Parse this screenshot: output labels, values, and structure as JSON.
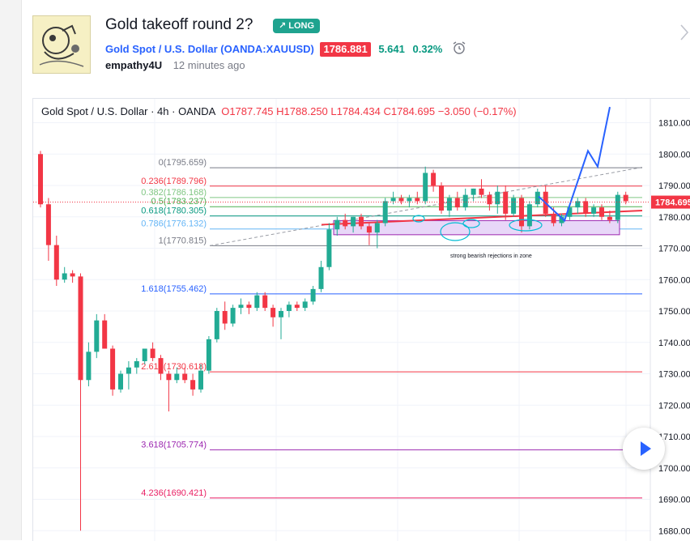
{
  "idea": {
    "title": "Gold takeoff round 2?",
    "badge": "LONG",
    "symbol_name": "Gold Spot / U.S. Dollar",
    "symbol_code": "(OANDA:XAUUSD)",
    "price": "1786.881",
    "change": "5.641",
    "change_pct": "0.32%",
    "author": "empathy4U",
    "time_ago": "12 minutes ago"
  },
  "chart": {
    "legend_title": "Gold Spot / U.S. Dollar · 4h · OANDA",
    "open": "O1787.745",
    "high": "H1788.250",
    "low": "L1784.434",
    "close": "C1784.695",
    "change": "−3.050 (−0.17%)",
    "last_price_label": "1784.695",
    "annotation": "strong bearish rejections in zone",
    "colors": {
      "up": "#22ab94",
      "down": "#f23645",
      "drawing": "#2962ff",
      "zone": "#e8d7f8"
    }
  },
  "chart_data": {
    "type": "candlestick",
    "ylim": [
      1678,
      1816
    ],
    "y_ticks": [
      "1680.000",
      "1690.000",
      "1700.000",
      "1710.000",
      "1720.000",
      "1730.000",
      "1740.000",
      "1750.000",
      "1760.000",
      "1770.000",
      "1780.000",
      "1790.000",
      "1800.000",
      "1810.000"
    ],
    "fib_levels": [
      {
        "label": "0(1795.659)",
        "value": 1795.659,
        "color": "#787b86"
      },
      {
        "label": "0.236(1789.796)",
        "value": 1789.796,
        "color": "#f23645"
      },
      {
        "label": "0.382(1786.168)",
        "value": 1786.168,
        "color": "#81c784"
      },
      {
        "label": "0.5(1783.237)",
        "value": 1783.237,
        "color": "#4caf50"
      },
      {
        "label": "0.618(1780.305)",
        "value": 1780.305,
        "color": "#089981"
      },
      {
        "label": "0.786(1776.132)",
        "value": 1776.132,
        "color": "#64b5f6"
      },
      {
        "label": "1(1770.815)",
        "value": 1770.815,
        "color": "#787b86"
      },
      {
        "label": "1.618(1755.462)",
        "value": 1755.462,
        "color": "#2962ff"
      },
      {
        "label": "2.618(1730.618)",
        "value": 1730.618,
        "color": "#f23645"
      },
      {
        "label": "3.618(1705.774)",
        "value": 1705.774,
        "color": "#9c27b0"
      },
      {
        "label": "4.236(1690.421)",
        "value": 1690.421,
        "color": "#e91e63"
      }
    ],
    "zone": {
      "top": 1778.8,
      "bottom": 1774.3
    },
    "candles": [
      [
        1800,
        1801,
        1783,
        1784
      ],
      [
        1784,
        1786,
        1766,
        1771
      ],
      [
        1771,
        1774,
        1758,
        1760
      ],
      [
        1760,
        1764,
        1759,
        1762
      ],
      [
        1762,
        1763,
        1759,
        1761
      ],
      [
        1761,
        1762,
        1680,
        1728
      ],
      [
        1728,
        1740,
        1726,
        1737
      ],
      [
        1737,
        1749,
        1735,
        1747
      ],
      [
        1747,
        1749,
        1738,
        1738
      ],
      [
        1738,
        1739,
        1723,
        1725
      ],
      [
        1725,
        1731,
        1724,
        1730
      ],
      [
        1730,
        1734,
        1725,
        1732
      ],
      [
        1732,
        1735,
        1730,
        1734
      ],
      [
        1734,
        1738,
        1733,
        1738
      ],
      [
        1738,
        1740,
        1734,
        1735
      ],
      [
        1735,
        1736,
        1728,
        1730
      ],
      [
        1730,
        1731,
        1718,
        1728
      ],
      [
        1728,
        1732,
        1727,
        1730
      ],
      [
        1730,
        1732,
        1727,
        1728
      ],
      [
        1728,
        1730,
        1723,
        1725
      ],
      [
        1725,
        1733,
        1724,
        1731
      ],
      [
        1731,
        1742,
        1730,
        1741
      ],
      [
        1741,
        1751,
        1740,
        1750
      ],
      [
        1750,
        1753,
        1744,
        1746
      ],
      [
        1746,
        1752,
        1745,
        1751
      ],
      [
        1751,
        1754,
        1749,
        1752
      ],
      [
        1752,
        1753,
        1749,
        1751
      ],
      [
        1751,
        1756,
        1750,
        1755
      ],
      [
        1755,
        1756,
        1750,
        1751
      ],
      [
        1751,
        1752,
        1745,
        1748
      ],
      [
        1748,
        1751,
        1741,
        1750
      ],
      [
        1750,
        1753,
        1748,
        1752
      ],
      [
        1752,
        1753,
        1750,
        1751
      ],
      [
        1751,
        1754,
        1750,
        1753
      ],
      [
        1753,
        1758,
        1752,
        1757
      ],
      [
        1757,
        1766,
        1756,
        1764
      ],
      [
        1764,
        1778,
        1763,
        1776
      ],
      [
        1776,
        1780,
        1774,
        1779
      ],
      [
        1779,
        1781,
        1776,
        1777
      ],
      [
        1777,
        1780,
        1775,
        1780
      ],
      [
        1780,
        1781,
        1776,
        1777
      ],
      [
        1777,
        1778,
        1771,
        1775
      ],
      [
        1775,
        1779,
        1770,
        1778
      ],
      [
        1778,
        1786,
        1777,
        1785
      ],
      [
        1785,
        1788,
        1784,
        1786
      ],
      [
        1786,
        1787,
        1784,
        1785
      ],
      [
        1785,
        1787,
        1783,
        1786
      ],
      [
        1786,
        1788,
        1784,
        1785
      ],
      [
        1785,
        1796,
        1784,
        1794
      ],
      [
        1794,
        1795,
        1788,
        1790
      ],
      [
        1790,
        1791,
        1781,
        1782
      ],
      [
        1782,
        1787,
        1780,
        1786
      ],
      [
        1786,
        1788,
        1782,
        1783
      ],
      [
        1783,
        1789,
        1782,
        1787
      ],
      [
        1787,
        1789,
        1785,
        1789
      ],
      [
        1789,
        1792,
        1786,
        1787
      ],
      [
        1787,
        1788,
        1782,
        1784
      ],
      [
        1784,
        1790,
        1781,
        1788
      ],
      [
        1788,
        1790,
        1779,
        1781
      ],
      [
        1781,
        1787,
        1780,
        1786
      ],
      [
        1786,
        1787,
        1775,
        1777
      ],
      [
        1777,
        1785,
        1776,
        1784
      ],
      [
        1784,
        1789,
        1783,
        1788
      ],
      [
        1788,
        1790,
        1780,
        1781
      ],
      [
        1781,
        1783,
        1777,
        1778
      ],
      [
        1778,
        1781,
        1777,
        1780
      ],
      [
        1780,
        1784,
        1779,
        1783
      ],
      [
        1783,
        1786,
        1781,
        1785
      ],
      [
        1785,
        1786,
        1780,
        1781
      ],
      [
        1781,
        1784,
        1780,
        1783
      ],
      [
        1783,
        1784,
        1779,
        1780
      ],
      [
        1780,
        1782,
        1778,
        1779
      ],
      [
        1779,
        1788,
        1778,
        1787
      ],
      [
        1787,
        1788,
        1784,
        1785
      ]
    ],
    "projection": [
      [
        1779,
        0
      ],
      [
        1794,
        14
      ],
      [
        1798,
        20
      ],
      [
        1806,
        26
      ],
      [
        1815,
        34
      ]
    ]
  }
}
